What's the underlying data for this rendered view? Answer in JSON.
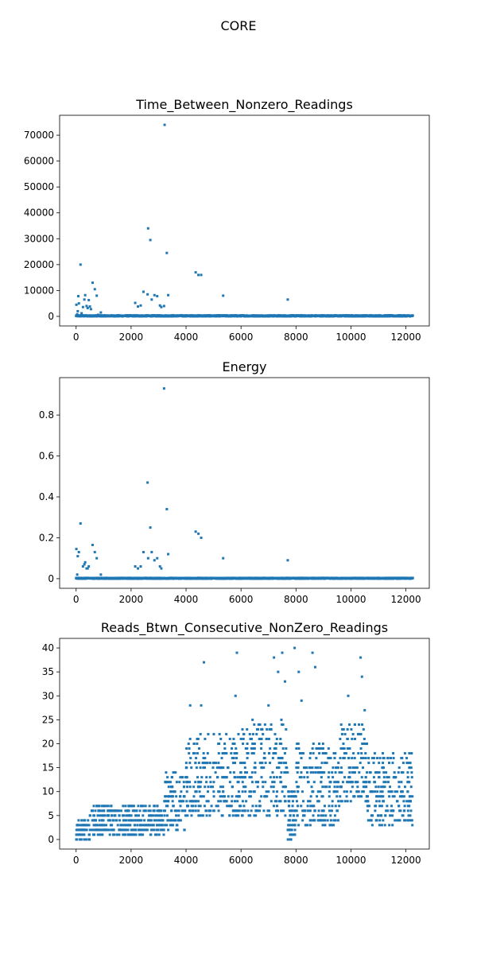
{
  "figure": {
    "suptitle": "CORE"
  },
  "chart_data": [
    {
      "type": "scatter",
      "title": "Time_Between_Nonzero_Readings",
      "xlabel": "",
      "ylabel": "",
      "xlim": [
        -600,
        12850
      ],
      "ylim": [
        -3700,
        77700
      ],
      "xticks": [
        0,
        2000,
        4000,
        6000,
        8000,
        10000,
        12000
      ],
      "yticks": [
        0,
        10000,
        20000,
        30000,
        40000,
        50000,
        60000,
        70000
      ],
      "marker_color": "#1f77b4",
      "grid": false,
      "outliers": [
        [
          10,
          4500
        ],
        [
          40,
          800
        ],
        [
          60,
          2000
        ],
        [
          80,
          7800
        ],
        [
          100,
          5000
        ],
        [
          160,
          20000
        ],
        [
          200,
          1200
        ],
        [
          250,
          3600
        ],
        [
          300,
          6500
        ],
        [
          330,
          8200
        ],
        [
          380,
          4000
        ],
        [
          420,
          3200
        ],
        [
          460,
          6300
        ],
        [
          500,
          3800
        ],
        [
          540,
          2800
        ],
        [
          600,
          13000
        ],
        [
          680,
          10500
        ],
        [
          750,
          8000
        ],
        [
          800,
          600
        ],
        [
          900,
          1500
        ],
        [
          2150,
          5200
        ],
        [
          2250,
          3800
        ],
        [
          2350,
          4200
        ],
        [
          2450,
          9500
        ],
        [
          2600,
          8500
        ],
        [
          2620,
          34000
        ],
        [
          2700,
          29500
        ],
        [
          2750,
          6500
        ],
        [
          2850,
          8200
        ],
        [
          2950,
          7800
        ],
        [
          3050,
          4200
        ],
        [
          3100,
          3600
        ],
        [
          3200,
          4000
        ],
        [
          3220,
          74000
        ],
        [
          3300,
          24500
        ],
        [
          3350,
          8200
        ],
        [
          4350,
          17000
        ],
        [
          4450,
          16000
        ],
        [
          4550,
          16000
        ],
        [
          5350,
          8000
        ],
        [
          7700,
          6500
        ]
      ],
      "baseline": {
        "x_range": [
          0,
          12250
        ],
        "y_range": [
          0,
          800
        ],
        "approx_points": 12250
      }
    },
    {
      "type": "scatter",
      "title": "Energy",
      "xlabel": "",
      "ylabel": "",
      "xlim": [
        -600,
        12850
      ],
      "ylim": [
        -0.047,
        0.983
      ],
      "xticks": [
        0,
        2000,
        4000,
        6000,
        8000,
        10000,
        12000
      ],
      "yticks": [
        0.0,
        0.2,
        0.4,
        0.6,
        0.8
      ],
      "marker_color": "#1f77b4",
      "grid": false,
      "outliers": [
        [
          10,
          0.145
        ],
        [
          40,
          0.02
        ],
        [
          60,
          0.11
        ],
        [
          100,
          0.13
        ],
        [
          160,
          0.27
        ],
        [
          250,
          0.06
        ],
        [
          300,
          0.07
        ],
        [
          330,
          0.08
        ],
        [
          380,
          0.05
        ],
        [
          420,
          0.05
        ],
        [
          460,
          0.06
        ],
        [
          600,
          0.165
        ],
        [
          680,
          0.13
        ],
        [
          750,
          0.1
        ],
        [
          900,
          0.02
        ],
        [
          2150,
          0.06
        ],
        [
          2250,
          0.05
        ],
        [
          2350,
          0.06
        ],
        [
          2450,
          0.13
        ],
        [
          2600,
          0.47
        ],
        [
          2620,
          0.1
        ],
        [
          2700,
          0.25
        ],
        [
          2750,
          0.13
        ],
        [
          2850,
          0.09
        ],
        [
          2950,
          0.1
        ],
        [
          3050,
          0.06
        ],
        [
          3100,
          0.05
        ],
        [
          3200,
          0.93
        ],
        [
          3300,
          0.34
        ],
        [
          3350,
          0.12
        ],
        [
          4350,
          0.23
        ],
        [
          4450,
          0.22
        ],
        [
          4550,
          0.2
        ],
        [
          5350,
          0.1
        ],
        [
          7700,
          0.09
        ]
      ],
      "baseline": {
        "x_range": [
          0,
          12250
        ],
        "y_range": [
          0,
          0.008
        ],
        "approx_points": 12250
      }
    },
    {
      "type": "scatter",
      "title": "Reads_Btwn_Consecutive_NonZero_Readings",
      "xlabel": "",
      "ylabel": "",
      "xlim": [
        -600,
        12850
      ],
      "ylim": [
        -2,
        42
      ],
      "xticks": [
        0,
        2000,
        4000,
        6000,
        8000,
        10000,
        12000
      ],
      "yticks": [
        0,
        5,
        10,
        15,
        20,
        25,
        30,
        35,
        40
      ],
      "marker_color": "#1f77b4",
      "grid": false,
      "trend": [
        {
          "x_range": [
            0,
            500
          ],
          "y_range": [
            0,
            4
          ]
        },
        {
          "x_range": [
            500,
            3200
          ],
          "y_range": [
            1,
            7
          ]
        },
        {
          "x_range": [
            3200,
            4000
          ],
          "y_range": [
            2,
            14
          ]
        },
        {
          "x_range": [
            4000,
            6000
          ],
          "y_range": [
            5,
            22
          ]
        },
        {
          "x_range": [
            6000,
            7700
          ],
          "y_range": [
            5,
            25
          ]
        },
        {
          "x_range": [
            7700,
            8000
          ],
          "y_range": [
            0,
            10
          ]
        },
        {
          "x_range": [
            8000,
            9600
          ],
          "y_range": [
            3,
            20
          ]
        },
        {
          "x_range": [
            9600,
            10600
          ],
          "y_range": [
            8,
            24
          ]
        },
        {
          "x_range": [
            10600,
            12250
          ],
          "y_range": [
            3,
            18
          ]
        }
      ],
      "outliers": [
        [
          4650,
          37
        ],
        [
          5850,
          39
        ],
        [
          5800,
          30
        ],
        [
          7200,
          38
        ],
        [
          7350,
          35
        ],
        [
          7500,
          39
        ],
        [
          7600,
          33
        ],
        [
          7950,
          40
        ],
        [
          8100,
          35
        ],
        [
          8600,
          39
        ],
        [
          8700,
          36
        ],
        [
          9900,
          30
        ],
        [
          10350,
          38
        ],
        [
          10400,
          34
        ],
        [
          10500,
          27
        ],
        [
          4150,
          28
        ],
        [
          4550,
          28
        ],
        [
          7000,
          28
        ],
        [
          8200,
          29
        ]
      ]
    }
  ]
}
